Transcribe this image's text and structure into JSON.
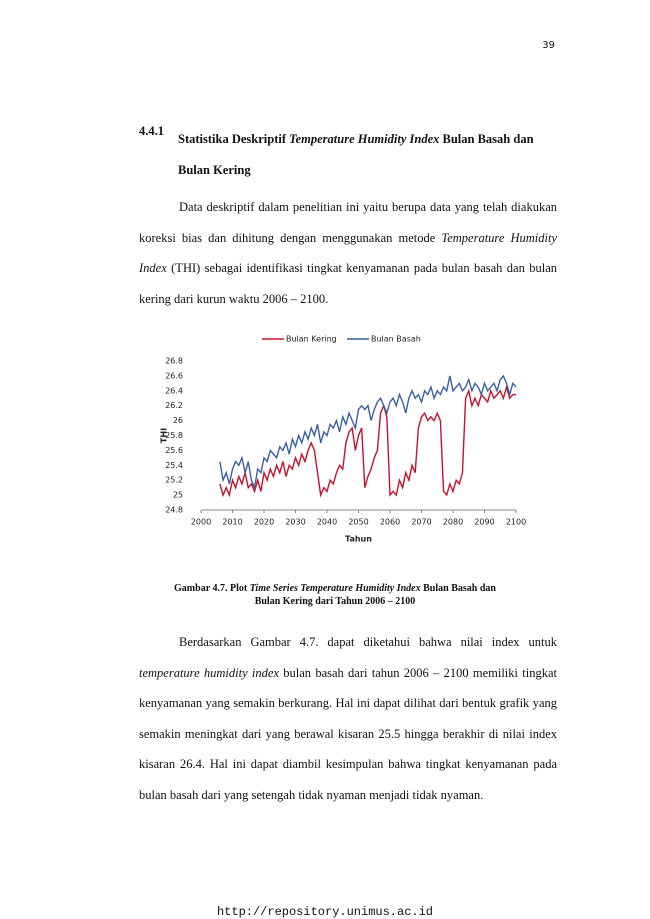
{
  "page_number": "39",
  "heading": {
    "number": "4.4.1",
    "parts": [
      "Statistika Deskriptif ",
      {
        "text": "Temperature Humidity Index",
        "italic": true
      },
      " Bulan Basah dan Bulan Kering"
    ]
  },
  "paragraphs": [
    [
      "Data deskriptif dalam penelitian ini yaitu berupa data yang telah diakukan koreksi bias dan dihitung dengan menggunakan metode ",
      {
        "text": "Temperature Humidity Index",
        "italic": true
      },
      " (THI) sebagai identifikasi tingkat kenyamanan pada bulan basah dan bulan kering dari kurun waktu 2006 – 2100."
    ],
    [
      "Berdasarkan Gambar 4.7. dapat diketahui bahwa nilai index untuk ",
      {
        "text": "temperature humidity index",
        "italic": true
      },
      " bulan basah dari tahun 2006 – 2100 memiliki tingkat kenyamanan yang semakin berkurang. Hal ini dapat dilihat dari bentuk grafik yang semakin meningkat dari yang berawal kisaran 25.5 hingga berakhir di nilai index kisaran 26.4. Hal ini dapat diambil kesimpulan bahwa tingkat kenyamanan pada bulan basah dari yang setengah tidak nyaman menjadi tidak nyaman."
    ]
  ],
  "chart_data": {
    "type": "line",
    "xlabel": "Tahun",
    "ylabel": "THI",
    "xlim": [
      2000,
      2100
    ],
    "xticks": [
      2000,
      2010,
      2020,
      2030,
      2040,
      2050,
      2060,
      2070,
      2080,
      2090,
      2100
    ],
    "ylim": [
      24.8,
      26.8
    ],
    "yticks": [
      24.8,
      25,
      25.2,
      25.4,
      25.6,
      25.8,
      26,
      26.2,
      26.4,
      26.6,
      26.8
    ],
    "grid": false,
    "legend": "top",
    "x": [
      2006,
      2007,
      2008,
      2009,
      2010,
      2011,
      2012,
      2013,
      2014,
      2015,
      2016,
      2017,
      2018,
      2019,
      2020,
      2021,
      2022,
      2023,
      2024,
      2025,
      2026,
      2027,
      2028,
      2029,
      2030,
      2031,
      2032,
      2033,
      2034,
      2035,
      2036,
      2037,
      2038,
      2039,
      2040,
      2041,
      2042,
      2043,
      2044,
      2045,
      2046,
      2047,
      2048,
      2049,
      2050,
      2051,
      2052,
      2053,
      2054,
      2055,
      2056,
      2057,
      2058,
      2059,
      2060,
      2061,
      2062,
      2063,
      2064,
      2065,
      2066,
      2067,
      2068,
      2069,
      2070,
      2071,
      2072,
      2073,
      2074,
      2075,
      2076,
      2077,
      2078,
      2079,
      2080,
      2081,
      2082,
      2083,
      2084,
      2085,
      2086,
      2087,
      2088,
      2089,
      2090,
      2091,
      2092,
      2093,
      2094,
      2095,
      2096,
      2097,
      2098,
      2099,
      2100
    ],
    "series": [
      {
        "name": "Bulan Kering",
        "color": "#c8102e",
        "values": [
          25.15,
          25.0,
          25.1,
          25.0,
          25.2,
          25.1,
          25.25,
          25.15,
          25.3,
          25.1,
          25.15,
          25.05,
          25.2,
          25.05,
          25.3,
          25.2,
          25.35,
          25.25,
          25.4,
          25.3,
          25.45,
          25.25,
          25.4,
          25.35,
          25.5,
          25.4,
          25.55,
          25.45,
          25.6,
          25.7,
          25.6,
          25.3,
          25.0,
          25.1,
          25.05,
          25.2,
          25.15,
          25.3,
          25.4,
          25.35,
          25.7,
          25.85,
          25.9,
          25.6,
          25.8,
          25.9,
          25.1,
          25.25,
          25.35,
          25.5,
          25.6,
          26.1,
          26.2,
          26.05,
          25.0,
          25.05,
          25.0,
          25.2,
          25.1,
          25.3,
          25.2,
          25.4,
          25.3,
          25.9,
          26.05,
          26.1,
          26.0,
          26.05,
          26.0,
          26.1,
          26.0,
          25.05,
          25.0,
          25.15,
          25.05,
          25.2,
          25.15,
          25.3,
          26.3,
          26.4,
          26.2,
          26.3,
          26.2,
          26.35,
          26.3,
          26.25,
          26.4,
          26.3,
          26.35,
          26.4,
          26.3,
          26.45,
          26.3,
          26.35,
          26.35
        ]
      },
      {
        "name": "Bulan Basah",
        "color": "#3b5fa3",
        "values": [
          25.45,
          25.2,
          25.3,
          25.15,
          25.35,
          25.45,
          25.4,
          25.5,
          25.3,
          25.45,
          25.2,
          25.1,
          25.35,
          25.3,
          25.5,
          25.45,
          25.6,
          25.55,
          25.5,
          25.65,
          25.6,
          25.7,
          25.55,
          25.75,
          25.65,
          25.8,
          25.7,
          25.85,
          25.75,
          25.9,
          25.8,
          25.95,
          25.7,
          25.85,
          25.8,
          25.95,
          25.9,
          26.0,
          25.85,
          26.05,
          25.95,
          26.1,
          26.0,
          25.9,
          26.15,
          26.2,
          26.15,
          26.2,
          26.0,
          26.15,
          26.25,
          26.3,
          26.2,
          26.1,
          26.25,
          26.3,
          26.2,
          26.35,
          26.25,
          26.1,
          26.3,
          26.4,
          26.3,
          26.35,
          26.25,
          26.4,
          26.35,
          26.45,
          26.3,
          26.4,
          26.35,
          26.45,
          26.4,
          26.6,
          26.4,
          26.45,
          26.5,
          26.4,
          26.45,
          26.55,
          26.4,
          26.5,
          26.45,
          26.35,
          26.5,
          26.4,
          26.45,
          26.5,
          26.4,
          26.55,
          26.6,
          26.5,
          26.35,
          26.5,
          26.45
        ]
      }
    ]
  },
  "caption": [
    "Gambar 4.7. Plot ",
    {
      "text": "Time Series Temperature Humidity Index",
      "italic": true
    },
    " Bulan Basah dan Bulan Kering dari Tahun 2006 – 2100"
  ],
  "footer": "http://repository.unimus.ac.id"
}
